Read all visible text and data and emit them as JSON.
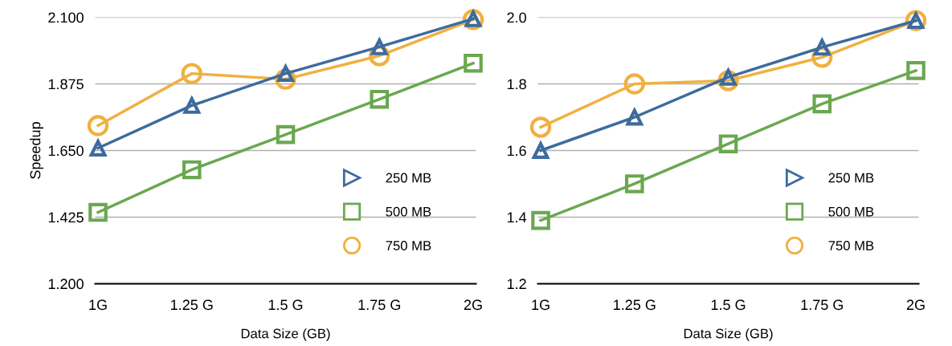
{
  "chart_data": [
    {
      "type": "line",
      "xlabel": "Data Size (GB)",
      "ylabel": "Speedup",
      "categories": [
        "1G",
        "1.25 G",
        "1.5 G",
        "1.75 G",
        "2G"
      ],
      "ylim": [
        1.2,
        2.1
      ],
      "yticks": [
        {
          "value": 1.2,
          "label": "1.200"
        },
        {
          "value": 1.425,
          "label": "1.425"
        },
        {
          "value": 1.65,
          "label": "1.650"
        },
        {
          "value": 1.875,
          "label": "1.875"
        },
        {
          "value": 2.1,
          "label": "2.100"
        }
      ],
      "grid": "y",
      "legend": "bottom right",
      "series": [
        {
          "name": "250 MB",
          "color": "#3d6b9e",
          "marker": "triangle",
          "values": [
            1.658,
            1.802,
            1.91,
            2.0,
            2.095
          ]
        },
        {
          "name": "500 MB",
          "color": "#6aa84f",
          "marker": "square",
          "values": [
            1.441,
            1.585,
            1.704,
            1.823,
            1.945
          ]
        },
        {
          "name": "750 MB",
          "color": "#f0b040",
          "marker": "circle",
          "values": [
            1.734,
            1.91,
            1.891,
            1.97,
            2.092
          ]
        }
      ]
    },
    {
      "type": "line",
      "xlabel": "Data Size (GB)",
      "categories": [
        "1G",
        "1.25 G",
        "1.5 G",
        "1.75 G",
        "2G"
      ],
      "ylim": [
        1.2,
        2.0
      ],
      "yticks": [
        1.2,
        1.4,
        1.6,
        1.8,
        {
          "value": 2.0,
          "label": "2.0"
        }
      ],
      "grid": "y",
      "legend": "bottom right",
      "series": [
        {
          "name": "250 MB",
          "color": "#3d6b9e",
          "marker": "triangle",
          "values": [
            1.6,
            1.7,
            1.82,
            1.91,
            1.99
          ]
        },
        {
          "name": "500 MB",
          "color": "#6aa84f",
          "marker": "square",
          "values": [
            1.39,
            1.5,
            1.62,
            1.74,
            1.84
          ]
        },
        {
          "name": "750 MB",
          "color": "#f0b040",
          "marker": "circle",
          "values": [
            1.67,
            1.8,
            1.81,
            1.88,
            1.99
          ]
        }
      ]
    }
  ]
}
